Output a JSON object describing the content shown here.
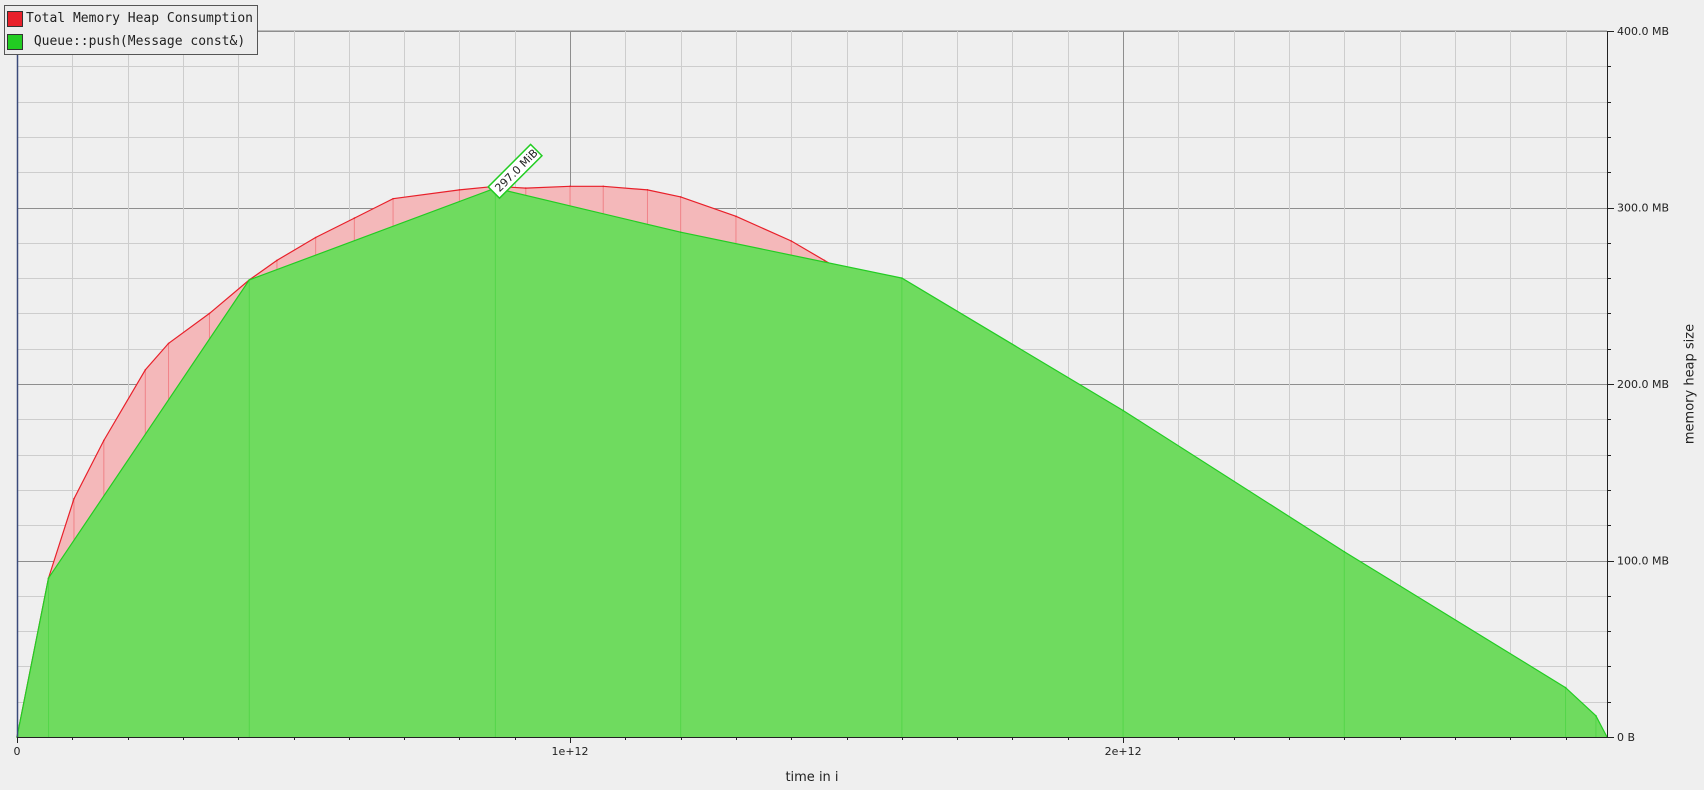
{
  "chart_data": {
    "type": "area",
    "xlabel": "time in i",
    "ylabel": "memory heap size",
    "xlim": [
      0,
      2875000000000.0
    ],
    "ylim": [
      0,
      400
    ],
    "x_ticks": [
      "0",
      "1e+12",
      "2e+12"
    ],
    "y_ticks": [
      "0 B",
      "100.0 MB",
      "200.0 MB",
      "300.0 MB",
      "400.0 MB"
    ],
    "legend_position": "top-left",
    "annotation": {
      "text": "297.0 MiB",
      "x": 865000000000.0,
      "y": 311,
      "series": "Queue::push(Message const&)"
    },
    "series": [
      {
        "name": "Total Memory Heap Consumption",
        "color": "#e8202a",
        "fill": "#f4b8ba",
        "x": [
          0,
          57000000000.0,
          103000000000.0,
          157000000000.0,
          232000000000.0,
          274000000000.0,
          348000000000.0,
          420000000000.0,
          470000000000.0,
          540000000000.0,
          610000000000.0,
          680000000000.0,
          800000000000.0,
          865000000000.0,
          920000000000.0,
          1000000000000.0,
          1060000000000.0,
          1140000000000.0,
          1200000000000.0,
          1300000000000.0,
          1400000000000.0,
          1460000000000.0,
          1530000000000.0,
          1600000000000.0,
          1700000000000.0,
          1800000000000.0,
          1900000000000.0,
          2000000000000.0,
          2100000000000.0,
          2200000000000.0,
          2300000000000.0,
          2400000000000.0,
          2500000000000.0,
          2600000000000.0,
          2700000000000.0,
          2800000000000.0,
          2855000000000.0,
          2875000000000.0
        ],
        "y": [
          0,
          90,
          135,
          168,
          208,
          223,
          240,
          259,
          270,
          283,
          294,
          305,
          310,
          312,
          311,
          312,
          312,
          310,
          306,
          295,
          281,
          270,
          257,
          242,
          222,
          203,
          183,
          163,
          143,
          124,
          104,
          85,
          66,
          47,
          28,
          10,
          4,
          0
        ]
      },
      {
        "name": "Queue::push(Message const&)",
        "color": "#22cc22",
        "fill": "#6fdb5f",
        "x": [
          0,
          57000000000.0,
          420000000000.0,
          865000000000.0,
          1200000000000.0,
          1600000000000.0,
          2000000000000.0,
          2400000000000.0,
          2800000000000.0,
          2855000000000.0,
          2875000000000.0
        ],
        "y": [
          0,
          90,
          259,
          311,
          286,
          260,
          185,
          105,
          28,
          12,
          0
        ]
      }
    ]
  }
}
